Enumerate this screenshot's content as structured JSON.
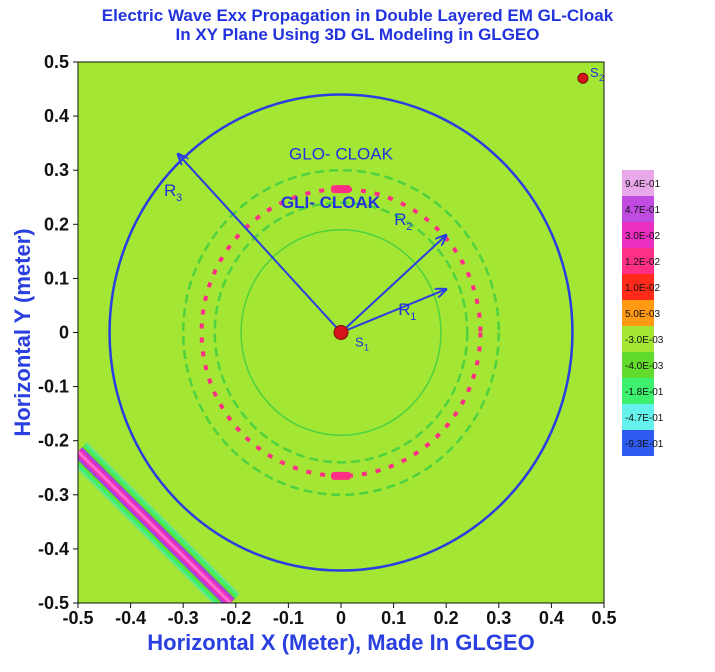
{
  "title_lines": [
    "Electric Wave Exx Propagation in Double Layered EM GL-Cloak",
    "In XY Plane Using 3D GL Modeling in GLGEO"
  ],
  "chart_data": {
    "type": "heatmap",
    "title": "Electric Wave Exx Propagation in Double Layered EM GL-Cloak In XY Plane Using 3D GL Modeling in GLGEO",
    "xlabel": "Horizontal X (Meter), Made In GLGEO",
    "ylabel": "Horizontal Y (meter)",
    "xlim": [
      -0.5,
      0.5
    ],
    "ylim": [
      -0.5,
      0.5
    ],
    "x_ticks": [
      -0.5,
      -0.4,
      -0.3,
      -0.2,
      -0.1,
      0,
      0.1,
      0.2,
      0.3,
      0.4,
      0.5
    ],
    "y_ticks": [
      0.5,
      0.4,
      0.3,
      0.2,
      0.1,
      0,
      -0.1,
      -0.2,
      -0.3,
      -0.4,
      -0.5
    ],
    "x_tick_labels": [
      "-0.5",
      "-0.4",
      "-0.3",
      "-0.2",
      "-0.1",
      "0",
      "0.1",
      "0.2",
      "0.3",
      "0.4",
      "0.5"
    ],
    "y_tick_labels": [
      "0.5",
      "0.4",
      "0.3",
      "0.2",
      "0.1",
      "0",
      "-0.1",
      "-0.2",
      "-0.3",
      "-0.4",
      "-0.5"
    ],
    "background_color": "#a3e633",
    "legend": [
      {
        "label": "9.4E-01",
        "color": "#e9a8ea"
      },
      {
        "label": "4.7E-01",
        "color": "#c04be0"
      },
      {
        "label": "3.0E-02",
        "color": "#ea2fc0"
      },
      {
        "label": "1.2E-02",
        "color": "#ff2f86"
      },
      {
        "label": "1.0E-02",
        "color": "#ff2a1a"
      },
      {
        "label": "5.0E-03",
        "color": "#ff9a12"
      },
      {
        "label": "-3.0E-03",
        "color": "#a3e633"
      },
      {
        "label": "-4.0E-03",
        "color": "#62dc2c"
      },
      {
        "label": "-1.8E-01",
        "color": "#3df06d"
      },
      {
        "label": "-4.7E-01",
        "color": "#66f2ec"
      },
      {
        "label": "-9.3E-01",
        "color": "#2f5bf2"
      }
    ],
    "legend_placement": "right",
    "circles": [
      {
        "name": "GLO-CLOAK outer boundary",
        "radius": 0.44,
        "color": "#2a3fe0"
      },
      {
        "name": "outer layer",
        "radius": 0.3,
        "color": "#4fd23f"
      },
      {
        "name": "cloak ring",
        "radius": 0.265,
        "color": "#ff2f86"
      },
      {
        "name": "inner layer",
        "radius": 0.24,
        "color": "#4fd23f"
      },
      {
        "name": "GLI-CLOAK inner boundary",
        "radius": 0.19,
        "color": "#4fd23f"
      }
    ],
    "sources": [
      {
        "label": "S",
        "subscript": "1",
        "x": 0.0,
        "y": 0.0
      },
      {
        "label": "S",
        "subscript": "2",
        "x": 0.46,
        "y": 0.47
      }
    ],
    "radius_arrows": [
      {
        "label": "R",
        "subscript": "1",
        "to": [
          0.2,
          0.08
        ]
      },
      {
        "label": "R",
        "subscript": "2",
        "to": [
          0.2,
          0.18
        ]
      },
      {
        "label": "R",
        "subscript": "3",
        "to": [
          -0.31,
          0.33
        ]
      }
    ],
    "annotations": [
      {
        "text": "GLO- CLOAK",
        "x": 0.0,
        "y": 0.32
      },
      {
        "text": "GLI- CLOAK",
        "x": -0.02,
        "y": 0.23
      }
    ],
    "wavefront_band": {
      "from": [
        -0.5,
        -0.22
      ],
      "to": [
        -0.21,
        -0.5
      ]
    }
  }
}
